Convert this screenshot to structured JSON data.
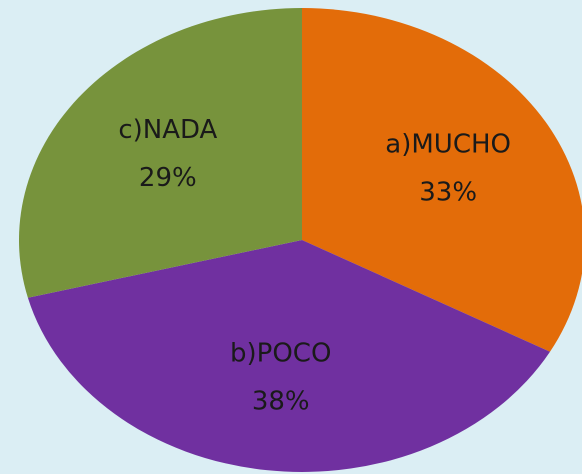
{
  "chart_data": {
    "type": "pie",
    "categories": [
      "a)MUCHO",
      "b)POCO",
      "c)NADA"
    ],
    "values": [
      33,
      38,
      29
    ],
    "value_labels": [
      "33%",
      "38%",
      "29%"
    ],
    "colors": [
      "#e36c09",
      "#7030a0",
      "#77933c"
    ]
  }
}
